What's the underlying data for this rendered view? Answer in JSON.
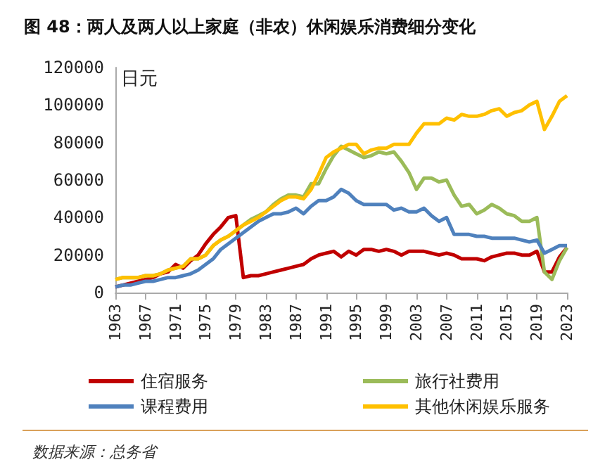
{
  "chart_data": {
    "type": "line",
    "title": "图 48：两人及两人以上家庭（非农）休闲娱乐消费细分变化",
    "ylabel": "日元",
    "annotations": [
      "数据来源：总务省"
    ],
    "categories": [
      "1963",
      null,
      null,
      null,
      "1967",
      null,
      null,
      null,
      "1971",
      null,
      null,
      null,
      "1975",
      null,
      null,
      null,
      "1979",
      null,
      null,
      null,
      "1983",
      null,
      null,
      null,
      "1987",
      null,
      null,
      null,
      "1991",
      null,
      null,
      null,
      "1995",
      null,
      null,
      null,
      "1999",
      null,
      null,
      null,
      "2003",
      null,
      null,
      null,
      "2007",
      null,
      null,
      null,
      "2011",
      null,
      null,
      null,
      "2015",
      null,
      null,
      null,
      "2019",
      null,
      null,
      null,
      "2023"
    ],
    "ylim": [
      0,
      120000
    ],
    "yticks": [
      0,
      20000,
      40000,
      60000,
      80000,
      100000,
      120000
    ],
    "grid": false,
    "legend": "bottom",
    "marker": "none",
    "line_style": "solid",
    "series": [
      {
        "name": "住宿服务",
        "color": "#c00000",
        "values": [
          3000,
          4000,
          5000,
          6000,
          7000,
          8000,
          10000,
          11000,
          15000,
          13000,
          17000,
          20000,
          26000,
          31000,
          35000,
          40000,
          41000,
          8000,
          9000,
          9000,
          10000,
          11000,
          12000,
          13000,
          14000,
          15000,
          18000,
          20000,
          21000,
          22000,
          19000,
          22000,
          20000,
          23000,
          23000,
          22000,
          23000,
          22000,
          20000,
          22000,
          22000,
          22000,
          21000,
          20000,
          21000,
          20000,
          18000,
          18000,
          18000,
          17000,
          19000,
          20000,
          21000,
          21000,
          20000,
          20000,
          22000,
          11000,
          11000,
          19000,
          24000
        ]
      },
      {
        "name": "旅行社费用",
        "color": "#9bbb59",
        "values": [
          7000,
          8000,
          8000,
          8000,
          9000,
          9000,
          10000,
          12000,
          13000,
          14000,
          18000,
          18000,
          20000,
          25000,
          28000,
          30000,
          33000,
          36000,
          39000,
          41000,
          43000,
          47000,
          50000,
          52000,
          52000,
          51000,
          58000,
          58000,
          66000,
          73000,
          78000,
          76000,
          74000,
          72000,
          73000,
          75000,
          74000,
          75000,
          70000,
          64000,
          55000,
          61000,
          61000,
          59000,
          60000,
          52000,
          46000,
          47000,
          42000,
          44000,
          47000,
          45000,
          42000,
          41000,
          38000,
          38000,
          40000,
          11000,
          7000,
          17000,
          24000
        ]
      },
      {
        "name": "课程费用",
        "color": "#4f81bd",
        "values": [
          3000,
          4000,
          4000,
          5000,
          6000,
          6000,
          7000,
          8000,
          8000,
          9000,
          10000,
          12000,
          15000,
          18000,
          23000,
          26000,
          29000,
          32000,
          35000,
          38000,
          40000,
          42000,
          42000,
          43000,
          45000,
          42000,
          46000,
          49000,
          49000,
          51000,
          55000,
          53000,
          49000,
          47000,
          47000,
          47000,
          47000,
          44000,
          45000,
          43000,
          43000,
          45000,
          41000,
          38000,
          40000,
          31000,
          31000,
          31000,
          30000,
          30000,
          29000,
          29000,
          29000,
          29000,
          28000,
          27000,
          28000,
          21000,
          23000,
          25000,
          25000
        ]
      },
      {
        "name": "其他休闲娱乐服务",
        "color": "#ffc000",
        "values": [
          7000,
          8000,
          8000,
          8000,
          9000,
          9000,
          10000,
          12000,
          13000,
          14000,
          18000,
          18000,
          20000,
          25000,
          28000,
          30000,
          33000,
          36000,
          38000,
          40000,
          43000,
          46000,
          49000,
          51000,
          51000,
          50000,
          55000,
          63000,
          72000,
          75000,
          77000,
          79000,
          79000,
          74000,
          76000,
          77000,
          77000,
          79000,
          79000,
          79000,
          85000,
          90000,
          90000,
          90000,
          93000,
          92000,
          95000,
          94000,
          94000,
          95000,
          97000,
          98000,
          94000,
          96000,
          97000,
          100000,
          102000,
          87000,
          94000,
          102000,
          105000
        ]
      }
    ]
  }
}
